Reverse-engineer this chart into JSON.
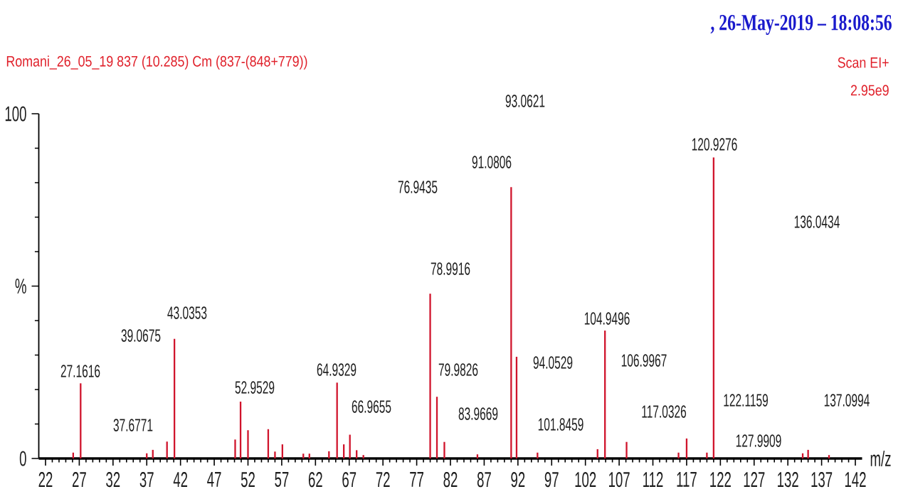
{
  "chart_data": {
    "type": "bar",
    "title": ", 26-May-2019 – 18:08:56",
    "subtitle": "Romani_26_05_19 837 (10.285) Cm (837-(848+779))",
    "xlabel": "m/z",
    "ylabel": "%",
    "x": [
      26.1,
      27.2,
      37.0,
      37.9,
      40.0,
      41.1,
      50.1,
      50.9,
      52.0,
      55.0,
      56.0,
      57.1,
      60.2,
      61.1,
      64.0,
      65.2,
      66.2,
      67.1,
      68.1,
      69.1,
      79.0,
      80.0,
      81.1,
      86.0,
      91.0,
      91.8,
      94.9,
      103.8,
      104.9,
      108.1,
      115.8,
      117.0,
      120.0,
      121.0,
      134.2,
      135.0,
      138.1
    ],
    "values": [
      1.7,
      21.8,
      1.5,
      2.5,
      4.9,
      34.7,
      5.5,
      16.5,
      8.2,
      8.5,
      2.0,
      4.1,
      1.4,
      1.4,
      2.1,
      22.0,
      4.1,
      6.9,
      2.4,
      1.0,
      47.8,
      17.9,
      4.8,
      1.2,
      78.7,
      29.5,
      1.7,
      2.7,
      37.1,
      4.8,
      1.7,
      5.8,
      1.7,
      87.3,
      1.5,
      2.5,
      1.0
    ],
    "color": "#d0142c",
    "xlim": [
      21,
      143
    ],
    "ylim": [
      0,
      100
    ],
    "xticks": [
      22,
      27,
      32,
      37,
      42,
      47,
      52,
      57,
      62,
      67,
      72,
      77,
      82,
      87,
      92,
      97,
      102,
      107,
      112,
      117,
      122,
      127,
      132,
      137,
      142
    ],
    "yticks": [
      0,
      {
        "value": 50,
        "label": null
      },
      100
    ],
    "annotations": [
      "93.0621",
      "120.9276",
      "91.0806",
      "76.9435",
      "136.0434",
      "78.9916",
      "43.0353",
      "104.9496",
      "39.0675",
      "106.9967",
      "94.0529",
      "27.1616",
      "64.9329",
      "79.9826",
      "52.9529",
      "122.1159",
      "137.0994",
      "66.9655",
      "117.0326",
      "83.9669",
      "101.8459",
      "37.6771",
      "127.9909",
      "Scan EI+",
      "2.95e9"
    ]
  }
}
